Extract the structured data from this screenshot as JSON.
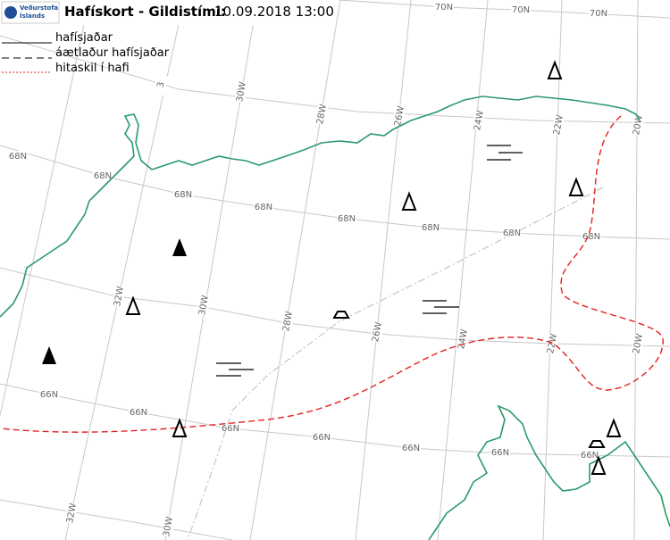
{
  "header": {
    "logo_line1": "Veðurstofa",
    "logo_line2": "Íslands",
    "title": "Hafískort - Gildistími:",
    "datetime": "10.09.2018 13:00"
  },
  "legend": [
    "hafísjaðar",
    "áætlaður hafísjaðar",
    "hitaskil í hafi"
  ],
  "lat_labels": [
    "70N",
    "70N",
    "70N",
    "68N",
    "68N",
    "68N",
    "68N",
    "68N",
    "68N",
    "68N",
    "68N",
    "66N",
    "66N",
    "66N",
    "66N",
    "66N",
    "66N",
    "66N"
  ],
  "lon_labels": [
    "3",
    "30W",
    "28W",
    "26W",
    "24W",
    "22W",
    "20W",
    "32W",
    "30W",
    "28W",
    "26W",
    "24W",
    "22W",
    "20W",
    "32W",
    "30W"
  ]
}
